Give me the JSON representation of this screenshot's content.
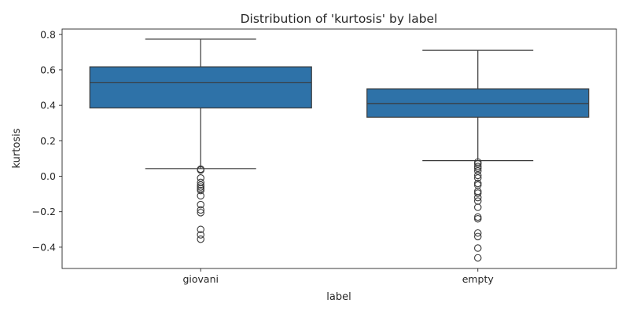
{
  "chart_data": {
    "type": "box",
    "title": "Distribution of 'kurtosis' by label",
    "xlabel": "label",
    "ylabel": "kurtosis",
    "ylim": [
      -0.52,
      0.83
    ],
    "yticks": [
      -0.4,
      -0.2,
      0.0,
      0.2,
      0.4,
      0.6,
      0.8
    ],
    "ytick_labels": [
      "−0.4",
      "−0.2",
      "0.0",
      "0.2",
      "0.4",
      "0.6",
      "0.8"
    ],
    "grid": false,
    "box_color": "#2e72a8",
    "line_color": "#3a3a3a",
    "categories": [
      "giovani",
      "empty"
    ],
    "boxes": [
      {
        "label": "giovani",
        "whisker_low": 0.043,
        "q1": 0.385,
        "median": 0.527,
        "q3": 0.617,
        "whisker_high": 0.773,
        "outliers": [
          0.04,
          0.035,
          -0.01,
          -0.035,
          -0.05,
          -0.06,
          -0.07,
          -0.08,
          -0.11,
          -0.16,
          -0.19,
          -0.205,
          -0.3,
          -0.33,
          -0.355
        ]
      },
      {
        "label": "empty",
        "whisker_low": 0.088,
        "q1": 0.333,
        "median": 0.41,
        "q3": 0.493,
        "whisker_high": 0.71,
        "outliers": [
          0.08,
          0.07,
          0.055,
          0.045,
          0.03,
          0.005,
          -0.01,
          -0.04,
          -0.05,
          -0.085,
          -0.095,
          -0.12,
          -0.14,
          -0.175,
          -0.23,
          -0.24,
          -0.32,
          -0.34,
          -0.405,
          -0.46
        ]
      }
    ]
  }
}
